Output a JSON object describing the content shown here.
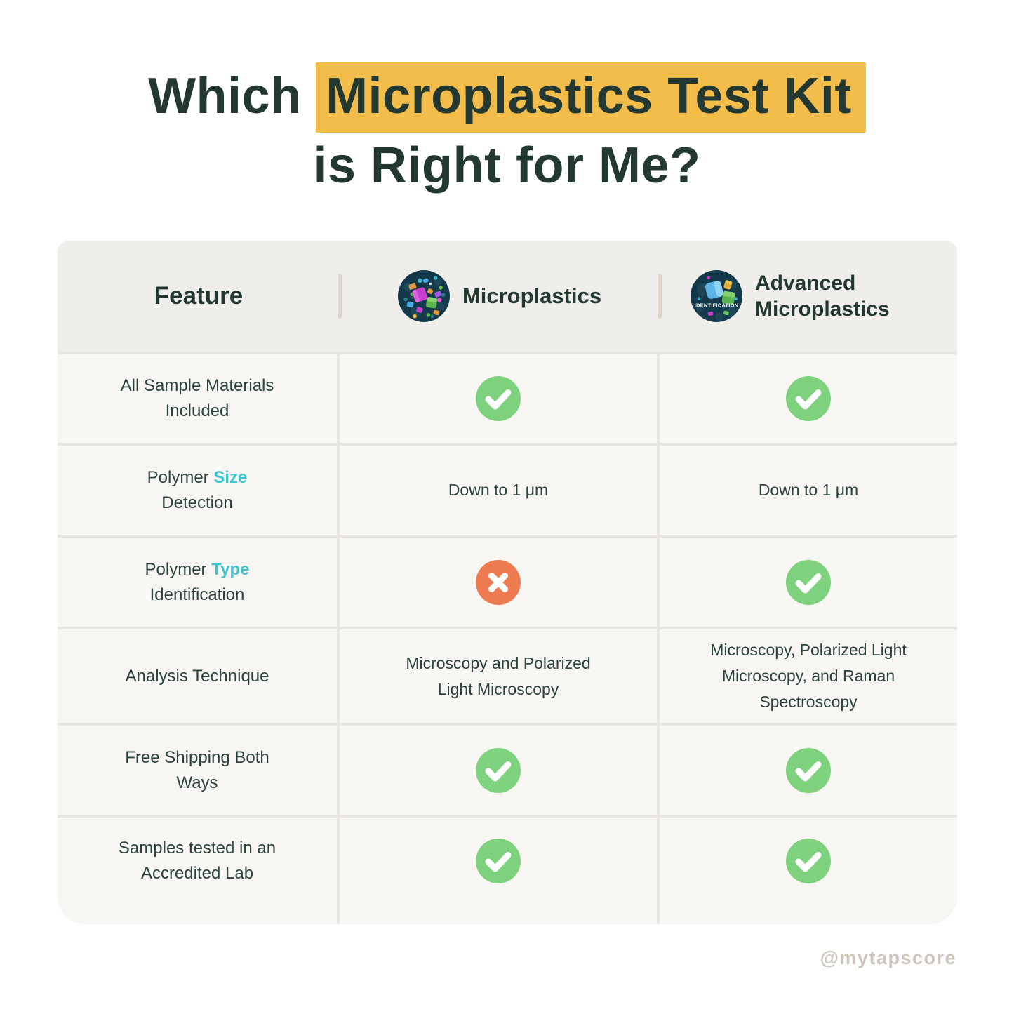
{
  "title": {
    "line1_prefix": "Which ",
    "line1_highlight": "Microplastics Test Kit",
    "line2": "is Right for Me?"
  },
  "table": {
    "header": {
      "feature_label": "Feature",
      "columns": [
        {
          "name": "Microplastics",
          "icon": "microplastics-kit-icon"
        },
        {
          "name": "Advanced Microplastics",
          "icon": "advanced-microplastics-kit-icon",
          "icon_label": "IDENTIFICATION"
        }
      ]
    },
    "rows": [
      {
        "feature": {
          "lines": [
            [
              {
                "t": "All Sample Materials"
              }
            ],
            [
              {
                "t": "Included"
              }
            ]
          ]
        },
        "cells": [
          {
            "type": "check"
          },
          {
            "type": "check"
          }
        ]
      },
      {
        "feature": {
          "lines": [
            [
              {
                "t": "Polymer "
              },
              {
                "t": "Size",
                "accent": true
              }
            ],
            [
              {
                "t": "Detection"
              }
            ]
          ]
        },
        "cells": [
          {
            "type": "text",
            "value": "Down to 1 μm"
          },
          {
            "type": "text",
            "value": "Down to 1 μm"
          }
        ]
      },
      {
        "feature": {
          "lines": [
            [
              {
                "t": "Polymer "
              },
              {
                "t": "Type",
                "accent": true
              }
            ],
            [
              {
                "t": "Identification"
              }
            ]
          ]
        },
        "cells": [
          {
            "type": "cross"
          },
          {
            "type": "check"
          }
        ]
      },
      {
        "feature": {
          "lines": [
            [
              {
                "t": "Analysis Technique"
              }
            ]
          ]
        },
        "cells": [
          {
            "type": "text",
            "value": "Microscopy and Polarized Light Microscopy"
          },
          {
            "type": "text",
            "value": "Microscopy, Polarized Light Microscopy, and Raman Spectroscopy"
          }
        ]
      },
      {
        "feature": {
          "lines": [
            [
              {
                "t": "Free Shipping Both"
              }
            ],
            [
              {
                "t": "Ways"
              }
            ]
          ]
        },
        "cells": [
          {
            "type": "check"
          },
          {
            "type": "check"
          }
        ]
      },
      {
        "feature": {
          "lines": [
            [
              {
                "t": "Samples tested in an"
              }
            ],
            [
              {
                "t": "Accredited Lab"
              }
            ]
          ]
        },
        "cells": [
          {
            "type": "check"
          },
          {
            "type": "check"
          }
        ]
      }
    ]
  },
  "chart_data": {
    "type": "table",
    "title": "Which Microplastics Test Kit is Right for Me?",
    "columns": [
      "Feature",
      "Microplastics",
      "Advanced Microplastics"
    ],
    "rows": [
      [
        "All Sample Materials Included",
        "yes",
        "yes"
      ],
      [
        "Polymer Size Detection",
        "Down to 1 μm",
        "Down to 1 μm"
      ],
      [
        "Polymer Type Identification",
        "no",
        "yes"
      ],
      [
        "Analysis Technique",
        "Microscopy and Polarized Light Microscopy",
        "Microscopy, Polarized Light Microscopy, and Raman Spectroscopy"
      ],
      [
        "Free Shipping Both Ways",
        "yes",
        "yes"
      ],
      [
        "Samples tested in an Accredited Lab",
        "yes",
        "yes"
      ]
    ]
  },
  "colors": {
    "highlight_yellow": "#f3bd4c",
    "title_text": "#233831",
    "accent_teal": "#3fc4d0",
    "check_green": "#7ed17d",
    "cross_orange": "#ee7b50",
    "header_bg": "#f0eeea",
    "cell_bg": "#f7f6f3",
    "icon_circle": "#14394b"
  },
  "watermark": "@mytapscore"
}
